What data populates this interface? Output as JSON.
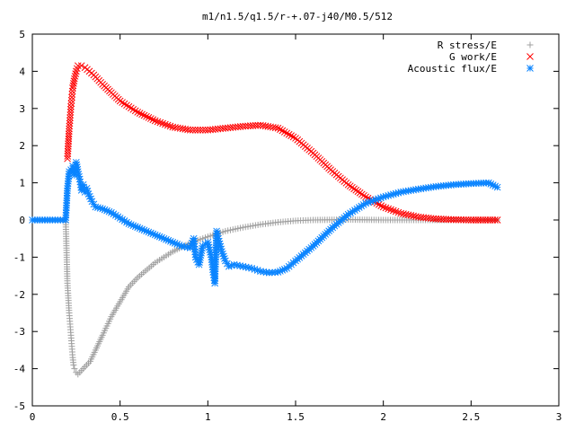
{
  "chart_data": {
    "type": "scatter",
    "title": "m1/n1.5/q1.5/r-+.07-j40/M0.5/512",
    "xlabel": "",
    "ylabel": "",
    "xlim": [
      0,
      3
    ],
    "ylim": [
      -5,
      5
    ],
    "xticks": [
      "0",
      "0.5",
      "1",
      "1.5",
      "2",
      "2.5",
      "3"
    ],
    "yticks": [
      "-5",
      "-4",
      "-3",
      "-2",
      "-1",
      "0",
      "1",
      "2",
      "3",
      "4",
      "5"
    ],
    "grid": false,
    "legend_position": "top-right",
    "series": [
      {
        "name": "R stress/E",
        "marker": "plus",
        "color": "#a0a0a0",
        "points": [
          [
            0.0,
            0.0
          ],
          [
            0.1,
            0.0
          ],
          [
            0.19,
            0.0
          ],
          [
            0.2,
            -1.7
          ],
          [
            0.205,
            -2.1
          ],
          [
            0.21,
            -2.5
          ],
          [
            0.215,
            -2.8
          ],
          [
            0.22,
            -3.1
          ],
          [
            0.225,
            -3.4
          ],
          [
            0.23,
            -3.7
          ],
          [
            0.235,
            -3.9
          ],
          [
            0.24,
            -4.0
          ],
          [
            0.25,
            -4.1
          ],
          [
            0.26,
            -4.15
          ],
          [
            0.27,
            -4.1
          ],
          [
            0.3,
            -3.95
          ],
          [
            0.33,
            -3.8
          ],
          [
            0.36,
            -3.5
          ],
          [
            0.4,
            -3.1
          ],
          [
            0.45,
            -2.6
          ],
          [
            0.5,
            -2.2
          ],
          [
            0.55,
            -1.8
          ],
          [
            0.6,
            -1.55
          ],
          [
            0.7,
            -1.15
          ],
          [
            0.8,
            -0.85
          ],
          [
            0.9,
            -0.62
          ],
          [
            1.0,
            -0.45
          ],
          [
            1.1,
            -0.3
          ],
          [
            1.2,
            -0.2
          ],
          [
            1.3,
            -0.12
          ],
          [
            1.4,
            -0.06
          ],
          [
            1.5,
            -0.02
          ],
          [
            1.6,
            0.0
          ],
          [
            1.8,
            0.01
          ],
          [
            2.0,
            0.0
          ],
          [
            2.2,
            0.0
          ],
          [
            2.4,
            0.0
          ],
          [
            2.65,
            0.0
          ]
        ]
      },
      {
        "name": "G work/E",
        "marker": "cross",
        "color": "#ff0000",
        "points": [
          [
            0.2,
            1.65
          ],
          [
            0.205,
            2.05
          ],
          [
            0.21,
            2.45
          ],
          [
            0.215,
            2.75
          ],
          [
            0.22,
            3.05
          ],
          [
            0.225,
            3.3
          ],
          [
            0.23,
            3.55
          ],
          [
            0.24,
            3.8
          ],
          [
            0.25,
            4.0
          ],
          [
            0.26,
            4.15
          ],
          [
            0.28,
            4.15
          ],
          [
            0.3,
            4.1
          ],
          [
            0.35,
            3.9
          ],
          [
            0.4,
            3.65
          ],
          [
            0.5,
            3.2
          ],
          [
            0.6,
            2.9
          ],
          [
            0.7,
            2.67
          ],
          [
            0.8,
            2.5
          ],
          [
            0.9,
            2.42
          ],
          [
            1.0,
            2.42
          ],
          [
            1.1,
            2.47
          ],
          [
            1.2,
            2.52
          ],
          [
            1.3,
            2.55
          ],
          [
            1.4,
            2.47
          ],
          [
            1.5,
            2.2
          ],
          [
            1.6,
            1.8
          ],
          [
            1.7,
            1.35
          ],
          [
            1.8,
            0.95
          ],
          [
            1.9,
            0.62
          ],
          [
            2.0,
            0.35
          ],
          [
            2.1,
            0.18
          ],
          [
            2.2,
            0.08
          ],
          [
            2.3,
            0.03
          ],
          [
            2.4,
            0.01
          ],
          [
            2.5,
            0.0
          ],
          [
            2.65,
            0.0
          ]
        ]
      },
      {
        "name": "Acoustic flux/E",
        "marker": "star",
        "color": "#0a84ff",
        "points": [
          [
            0.0,
            0.0
          ],
          [
            0.1,
            0.0
          ],
          [
            0.19,
            0.0
          ],
          [
            0.2,
            0.85
          ],
          [
            0.21,
            1.3
          ],
          [
            0.22,
            1.35
          ],
          [
            0.23,
            1.45
          ],
          [
            0.24,
            1.2
          ],
          [
            0.25,
            1.55
          ],
          [
            0.26,
            1.3
          ],
          [
            0.27,
            1.1
          ],
          [
            0.28,
            0.8
          ],
          [
            0.29,
            0.95
          ],
          [
            0.3,
            0.75
          ],
          [
            0.31,
            0.85
          ],
          [
            0.32,
            0.7
          ],
          [
            0.34,
            0.5
          ],
          [
            0.36,
            0.35
          ],
          [
            0.4,
            0.3
          ],
          [
            0.45,
            0.2
          ],
          [
            0.5,
            0.05
          ],
          [
            0.55,
            -0.1
          ],
          [
            0.6,
            -0.2
          ],
          [
            0.7,
            -0.4
          ],
          [
            0.8,
            -0.6
          ],
          [
            0.85,
            -0.7
          ],
          [
            0.9,
            -0.75
          ],
          [
            0.92,
            -0.5
          ],
          [
            0.93,
            -1.0
          ],
          [
            0.95,
            -1.2
          ],
          [
            0.97,
            -0.7
          ],
          [
            1.0,
            -0.6
          ],
          [
            1.02,
            -1.0
          ],
          [
            1.03,
            -1.4
          ],
          [
            1.04,
            -1.7
          ],
          [
            1.05,
            -0.3
          ],
          [
            1.06,
            -0.5
          ],
          [
            1.08,
            -0.85
          ],
          [
            1.1,
            -1.1
          ],
          [
            1.12,
            -1.25
          ],
          [
            1.15,
            -1.2
          ],
          [
            1.2,
            -1.25
          ],
          [
            1.25,
            -1.3
          ],
          [
            1.3,
            -1.38
          ],
          [
            1.35,
            -1.42
          ],
          [
            1.4,
            -1.4
          ],
          [
            1.45,
            -1.3
          ],
          [
            1.5,
            -1.1
          ],
          [
            1.6,
            -0.7
          ],
          [
            1.7,
            -0.25
          ],
          [
            1.8,
            0.15
          ],
          [
            1.9,
            0.45
          ],
          [
            2.0,
            0.62
          ],
          [
            2.1,
            0.75
          ],
          [
            2.2,
            0.83
          ],
          [
            2.3,
            0.9
          ],
          [
            2.4,
            0.95
          ],
          [
            2.5,
            0.98
          ],
          [
            2.6,
            1.0
          ],
          [
            2.65,
            0.88
          ]
        ]
      }
    ]
  }
}
